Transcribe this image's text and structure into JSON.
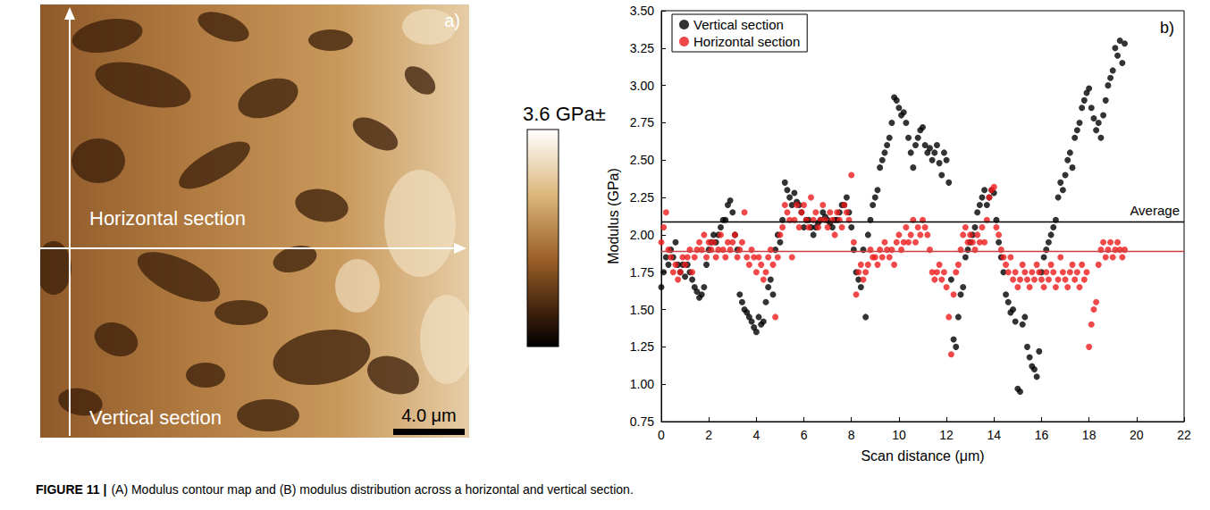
{
  "caption": {
    "label": "FIGURE 11 |",
    "text": "(A) Modulus contour map and (B) modulus distribution across a horizontal and vertical section."
  },
  "panel_a": {
    "type": "image",
    "letter": "a)",
    "section_labels": [
      "Horizontal section",
      "Vertical section"
    ],
    "colorbar_label": "3.6 GPa±",
    "scale_bar": "4.0 μm"
  },
  "chart_data": {
    "type": "scatter",
    "xlabel": "Scan distance (μm)",
    "ylabel": "Modulus (GPa)",
    "annotations": [
      {
        "text": "b)"
      }
    ],
    "xlim": [
      0,
      22
    ],
    "xticks": [
      0,
      2,
      4,
      6,
      8,
      10,
      12,
      14,
      16,
      18,
      20,
      22
    ],
    "ylim": [
      0.75,
      3.5
    ],
    "yticks": [
      {
        "value": 0.75,
        "label": "0.75"
      },
      {
        "value": 1.0,
        "label": "1.00"
      },
      {
        "value": 1.25,
        "label": "1.25"
      },
      {
        "value": 1.5,
        "label": "1.50"
      },
      {
        "value": 1.75,
        "label": "1.75"
      },
      {
        "value": 2.0,
        "label": "2.00"
      },
      {
        "value": 2.25,
        "label": "2.25"
      },
      {
        "value": 2.5,
        "label": "2.50"
      },
      {
        "value": 2.75,
        "label": "2.75"
      },
      {
        "value": 3.0,
        "label": "3.00"
      },
      {
        "value": 3.25,
        "label": "3.25"
      },
      {
        "value": 3.5,
        "label": "3.50"
      }
    ],
    "grid": false,
    "legend": "upper left",
    "marker": "circle",
    "x": [
      0,
      0.1,
      0.2,
      0.3,
      0.4,
      0.5,
      0.6,
      0.7,
      0.8,
      0.9,
      1,
      1.1,
      1.2,
      1.3,
      1.4,
      1.5,
      1.6,
      1.7,
      1.8,
      1.9,
      2,
      2.1,
      2.2,
      2.3,
      2.4,
      2.5,
      2.6,
      2.7,
      2.8,
      2.9,
      3,
      3.1,
      3.2,
      3.3,
      3.4,
      3.5,
      3.6,
      3.7,
      3.8,
      3.9,
      4,
      4.1,
      4.2,
      4.3,
      4.4,
      4.5,
      4.6,
      4.7,
      4.8,
      4.9,
      5,
      5.1,
      5.2,
      5.3,
      5.4,
      5.5,
      5.6,
      5.7,
      5.8,
      5.9,
      6,
      6.1,
      6.2,
      6.3,
      6.4,
      6.5,
      6.6,
      6.7,
      6.8,
      6.9,
      7,
      7.1,
      7.2,
      7.3,
      7.4,
      7.5,
      7.6,
      7.7,
      7.8,
      7.9,
      8,
      8.1,
      8.2,
      8.3,
      8.4,
      8.5,
      8.6,
      8.7,
      8.8,
      8.9,
      9,
      9.1,
      9.2,
      9.3,
      9.4,
      9.5,
      9.6,
      9.7,
      9.8,
      9.9,
      10,
      10.1,
      10.2,
      10.3,
      10.4,
      10.5,
      10.6,
      10.7,
      10.8,
      10.9,
      11,
      11.1,
      11.2,
      11.3,
      11.4,
      11.5,
      11.6,
      11.7,
      11.8,
      11.9,
      12,
      12.1,
      12.2,
      12.3,
      12.4,
      12.5,
      12.6,
      12.7,
      12.8,
      12.9,
      13,
      13.1,
      13.2,
      13.3,
      13.4,
      13.5,
      13.6,
      13.7,
      13.8,
      13.9,
      14,
      14.1,
      14.2,
      14.3,
      14.4,
      14.5,
      14.6,
      14.7,
      14.8,
      14.9,
      15,
      15.1,
      15.2,
      15.3,
      15.4,
      15.5,
      15.6,
      15.7,
      15.8,
      15.9,
      16,
      16.1,
      16.2,
      16.3,
      16.4,
      16.5,
      16.6,
      16.7,
      16.8,
      16.9,
      17,
      17.1,
      17.2,
      17.3,
      17.4,
      17.5,
      17.6,
      17.7,
      17.8,
      17.9,
      18,
      18.1,
      18.2,
      18.3,
      18.4,
      18.5,
      18.6,
      18.7,
      18.8,
      18.9,
      19,
      19.1,
      19.2,
      19.3,
      19.4,
      19.5
    ],
    "series": [
      {
        "name": "Vertical section",
        "color": "#000000",
        "values": [
          1.65,
          1.75,
          1.85,
          1.8,
          1.9,
          1.85,
          1.95,
          1.8,
          1.75,
          1.8,
          1.72,
          1.8,
          1.75,
          1.7,
          1.65,
          1.62,
          1.58,
          1.6,
          1.65,
          1.8,
          1.9,
          1.95,
          2.0,
          1.95,
          2.0,
          2.05,
          2.1,
          2.1,
          2.2,
          2.23,
          2.15,
          2.0,
          1.9,
          1.6,
          1.55,
          1.5,
          1.48,
          1.45,
          1.42,
          1.38,
          1.35,
          1.45,
          1.4,
          1.42,
          1.55,
          1.65,
          1.7,
          1.6,
          1.9,
          2.0,
          1.95,
          2.1,
          2.35,
          2.3,
          2.25,
          2.2,
          2.28,
          2.22,
          2.2,
          2.15,
          2.05,
          2.1,
          2.1,
          2.05,
          2.0,
          2.05,
          2.08,
          2.1,
          2.15,
          2.12,
          2.1,
          2.08,
          2.05,
          2.1,
          2.1,
          2.15,
          2.2,
          2.2,
          2.25,
          2.15,
          2.05,
          1.9,
          1.75,
          1.7,
          1.65,
          1.9,
          1.45,
          2.0,
          2.1,
          2.2,
          2.25,
          2.3,
          2.45,
          2.5,
          2.55,
          2.6,
          2.65,
          2.75,
          2.92,
          2.9,
          2.85,
          2.8,
          2.82,
          2.75,
          2.65,
          2.55,
          2.45,
          2.6,
          2.65,
          2.7,
          2.72,
          2.6,
          2.55,
          2.58,
          2.5,
          2.55,
          2.6,
          2.48,
          2.4,
          2.55,
          2.5,
          2.35,
          1.7,
          1.3,
          1.25,
          1.45,
          1.6,
          1.65,
          1.85,
          1.9,
          1.95,
          2.0,
          2.05,
          2.15,
          2.2,
          2.25,
          2.3,
          2.2,
          2.25,
          2.3,
          2.28,
          2.1,
          1.95,
          1.85,
          1.75,
          1.6,
          1.55,
          1.48,
          1.5,
          1.42,
          0.97,
          0.95,
          1.4,
          1.45,
          1.25,
          1.18,
          1.12,
          1.1,
          1.05,
          1.22,
          1.75,
          1.85,
          1.9,
          1.95,
          2.0,
          2.05,
          2.1,
          2.25,
          2.35,
          2.3,
          2.4,
          2.5,
          2.55,
          2.45,
          2.65,
          2.7,
          2.75,
          2.85,
          2.9,
          2.95,
          2.98,
          2.85,
          2.78,
          2.7,
          2.75,
          2.65,
          2.8,
          2.9,
          3.0,
          3.05,
          3.1,
          3.25,
          3.2,
          3.3,
          3.15,
          3.28
        ]
      },
      {
        "name": "Horizontal section",
        "color": "#ee1c1c",
        "values": [
          1.95,
          2.05,
          2.15,
          1.9,
          1.85,
          1.75,
          1.8,
          1.7,
          1.75,
          1.85,
          1.8,
          1.85,
          1.9,
          1.75,
          1.85,
          1.9,
          1.95,
          1.9,
          2.0,
          1.85,
          1.95,
          1.9,
          1.95,
          1.85,
          1.9,
          2.0,
          1.9,
          1.85,
          1.95,
          1.9,
          1.95,
          2.0,
          1.85,
          1.9,
          1.95,
          2.15,
          1.85,
          1.8,
          1.9,
          1.85,
          1.75,
          1.85,
          1.8,
          1.7,
          1.75,
          1.85,
          1.9,
          1.8,
          1.45,
          1.85,
          2.0,
          2.05,
          2.2,
          2.15,
          2.1,
          1.85,
          2.1,
          2.2,
          2.05,
          2.15,
          2.2,
          2.1,
          2.05,
          2.25,
          2.1,
          2.15,
          2.05,
          2.1,
          2.2,
          2.1,
          2.05,
          2.15,
          2.1,
          2.0,
          2.15,
          2.1,
          2.05,
          2.2,
          2.15,
          2.1,
          2.4,
          1.95,
          1.6,
          1.75,
          1.8,
          1.7,
          1.75,
          1.8,
          1.9,
          1.85,
          1.85,
          1.8,
          1.9,
          1.85,
          1.95,
          1.9,
          1.85,
          1.9,
          1.8,
          1.95,
          2.0,
          1.9,
          1.95,
          2.05,
          1.95,
          2.0,
          2.1,
          1.95,
          2.05,
          2.0,
          2.1,
          2.05,
          2.0,
          1.9,
          1.75,
          1.7,
          1.75,
          1.8,
          1.7,
          1.75,
          1.65,
          1.45,
          1.2,
          1.6,
          1.75,
          1.8,
          1.9,
          2.0,
          2.05,
          1.95,
          2.0,
          1.95,
          1.9,
          2.0,
          1.95,
          2.05,
          1.95,
          2.1,
          2.25,
          2.3,
          2.32,
          2.05,
          2.0,
          1.9,
          1.85,
          1.8,
          1.75,
          1.85,
          1.7,
          1.75,
          1.65,
          1.7,
          1.8,
          1.75,
          1.7,
          1.65,
          1.75,
          1.7,
          1.8,
          1.75,
          1.7,
          1.65,
          1.75,
          1.7,
          1.8,
          1.75,
          1.65,
          1.7,
          1.85,
          1.75,
          1.7,
          1.65,
          1.75,
          1.8,
          1.7,
          1.75,
          1.65,
          1.8,
          1.7,
          1.75,
          1.25,
          1.4,
          1.5,
          1.55,
          1.8,
          1.9,
          1.95,
          1.85,
          1.9,
          1.95,
          1.85,
          1.9,
          1.95,
          1.9,
          1.85,
          1.9
        ]
      }
    ],
    "reference_lines": [
      {
        "series": "Vertical section",
        "value": 2.09,
        "color": "#000000",
        "label": "Average"
      },
      {
        "series": "Horizontal section",
        "value": 1.89,
        "color": "#c94040"
      }
    ]
  }
}
